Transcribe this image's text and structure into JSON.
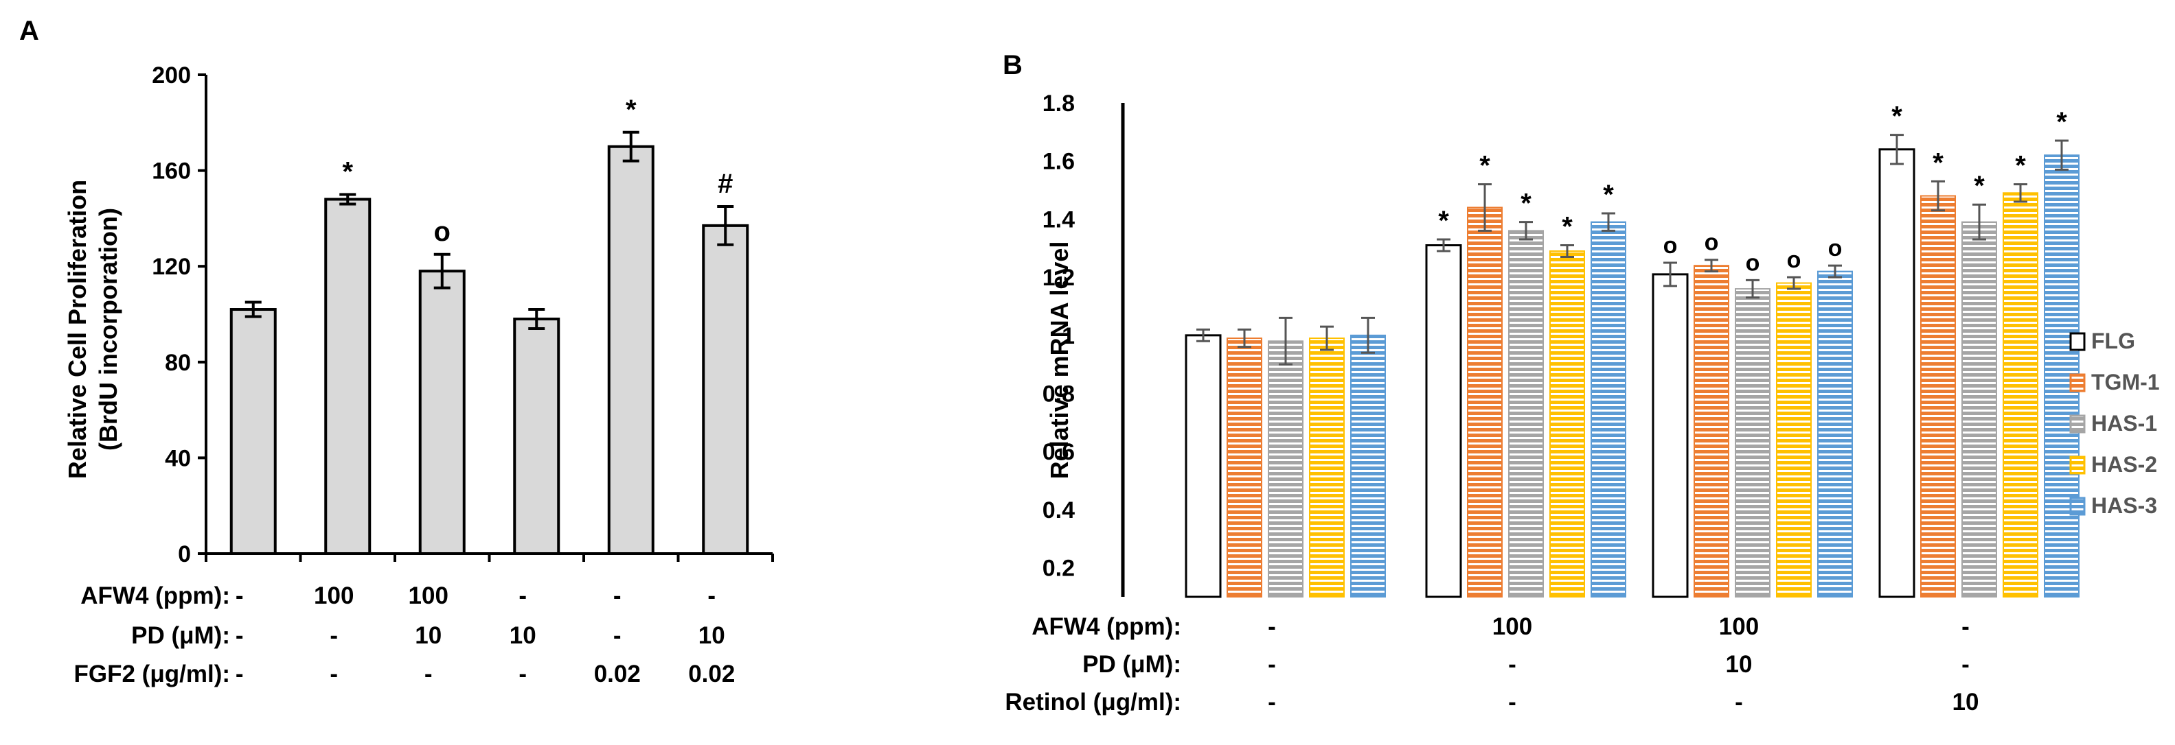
{
  "panel_a": {
    "label": "A",
    "chart_data": {
      "type": "bar",
      "title": "",
      "ylabel": [
        "Relative Cell Proliferation",
        "(BrdU incorporation)"
      ],
      "xlabel": "",
      "ylim": [
        0,
        200
      ],
      "yticks": [
        0,
        40,
        80,
        120,
        160,
        200
      ],
      "values": [
        102,
        148,
        118,
        98,
        170,
        137
      ],
      "errors": [
        3,
        2,
        7,
        4,
        6,
        8
      ],
      "annotations": [
        "",
        "*",
        "o",
        "",
        "*",
        "#"
      ],
      "bar_color": "#d9d9d9",
      "conditions": [
        {
          "label": "AFW4 (ppm):",
          "values": [
            "-",
            "100",
            "100",
            "-",
            "-",
            "-"
          ]
        },
        {
          "label": "PD (μM):",
          "values": [
            "-",
            "-",
            "10",
            "10",
            "-",
            "10"
          ]
        },
        {
          "label": "FGF2 (μg/ml):",
          "values": [
            "-",
            "-",
            "-",
            "-",
            "0.02",
            "0.02"
          ]
        }
      ]
    }
  },
  "panel_b": {
    "label": "B",
    "chart_data": {
      "type": "bar",
      "title": "",
      "ylabel": "Relative mRNA level",
      "xlabel": "",
      "ylim": [
        0.1,
        1.8
      ],
      "yticks": [
        0.2,
        0.4,
        0.6,
        0.8,
        1,
        1.2,
        1.4,
        1.6,
        1.8
      ],
      "ytick_labels": [
        "0.2",
        "0.4",
        "0.6",
        "0.8",
        "1",
        "1.2",
        "1.4",
        "1.6",
        "1.8"
      ],
      "groups": 4,
      "series": [
        {
          "name": "FLG",
          "color": "#ffffff",
          "values": [
            1.0,
            1.31,
            1.21,
            1.64
          ],
          "errors": [
            0.02,
            0.02,
            0.04,
            0.05
          ],
          "marks": [
            "",
            "*",
            "o",
            "*"
          ]
        },
        {
          "name": "TGM-1",
          "color": "#ed7d31",
          "values": [
            0.99,
            1.44,
            1.24,
            1.48
          ],
          "errors": [
            0.03,
            0.08,
            0.02,
            0.05
          ],
          "marks": [
            "",
            "*",
            "o",
            "*"
          ]
        },
        {
          "name": "HAS-1",
          "color": "#a5a5a5",
          "values": [
            0.98,
            1.36,
            1.16,
            1.39
          ],
          "errors": [
            0.08,
            0.03,
            0.03,
            0.06
          ],
          "marks": [
            "",
            "*",
            "o",
            "*"
          ]
        },
        {
          "name": "HAS-2",
          "color": "#ffc000",
          "values": [
            0.99,
            1.29,
            1.18,
            1.49
          ],
          "errors": [
            0.04,
            0.02,
            0.02,
            0.03
          ],
          "marks": [
            "",
            "*",
            "o",
            "*"
          ]
        },
        {
          "name": "HAS-3",
          "color": "#5b9bd5",
          "values": [
            1.0,
            1.39,
            1.22,
            1.62
          ],
          "errors": [
            0.06,
            0.03,
            0.02,
            0.05
          ],
          "marks": [
            "",
            "*",
            "o",
            "*"
          ]
        }
      ],
      "legend_position": "right",
      "conditions": [
        {
          "label": "AFW4 (ppm):",
          "values": [
            "-",
            "100",
            "100",
            "-"
          ]
        },
        {
          "label": "PD (μM):",
          "values": [
            "-",
            "-",
            "10",
            "-"
          ]
        },
        {
          "label": "Retinol (μg/ml):",
          "values": [
            "-",
            "-",
            "-",
            "10"
          ]
        }
      ]
    }
  }
}
